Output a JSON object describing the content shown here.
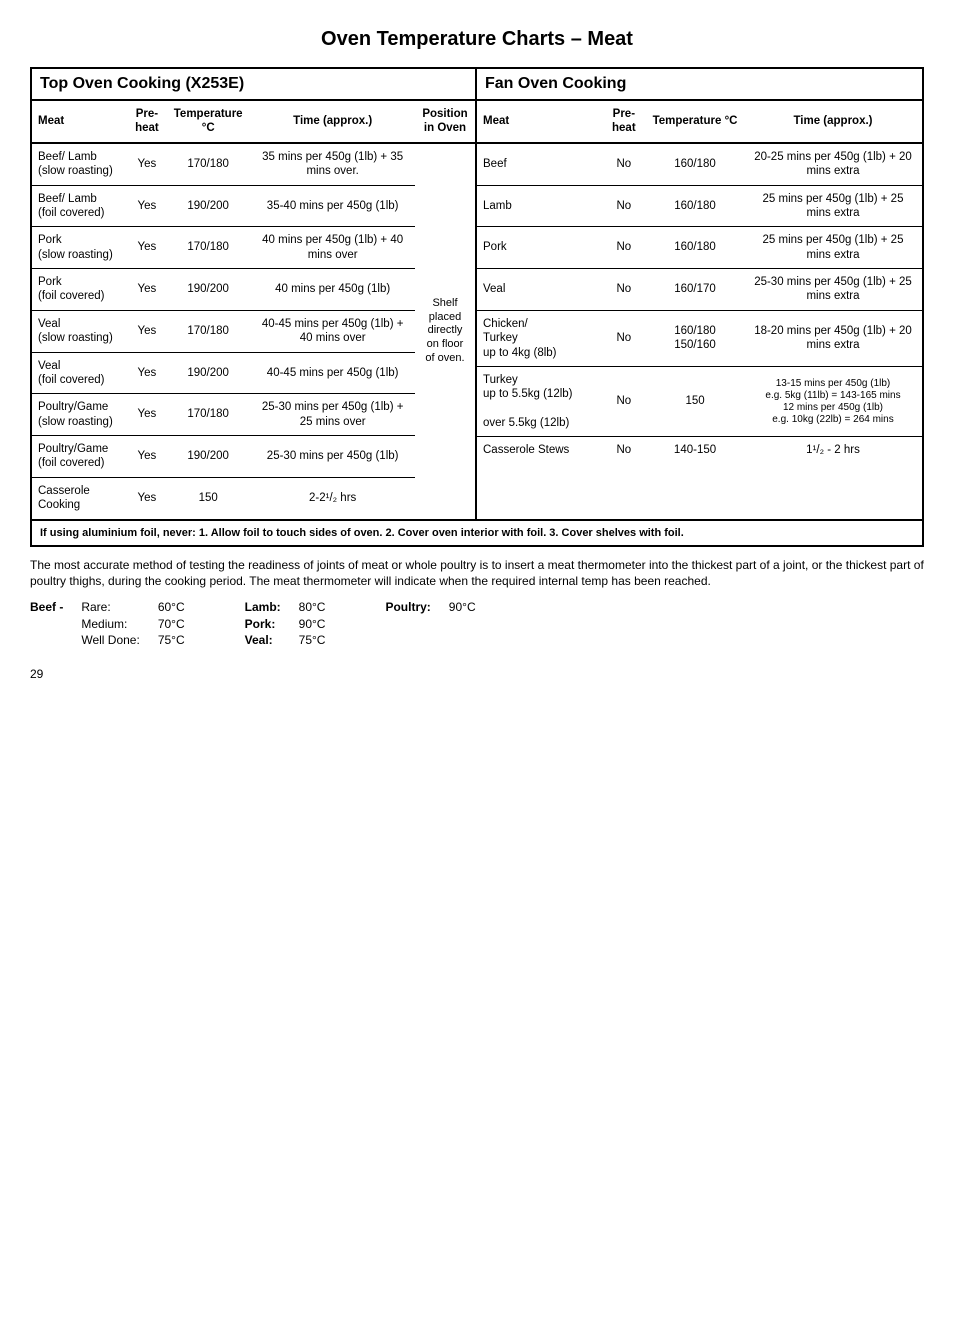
{
  "page_title": "Oven Temperature Charts – Meat",
  "left_header": "Top Oven Cooking (X253E)",
  "right_header": "Fan Oven Cooking",
  "columns": {
    "meat": "Meat",
    "preheat": "Pre-heat",
    "temp": "Temperature °C",
    "time": "Time (approx.)",
    "pos": "Position in Oven"
  },
  "left_rows": [
    {
      "meat": "Beef/ Lamb\n(slow roasting)",
      "pre": "Yes",
      "temp": "170/180",
      "time": "35 mins per 450g (1lb) + 35 mins over."
    },
    {
      "meat": "Beef/ Lamb\n(foil covered)",
      "pre": "Yes",
      "temp": "190/200",
      "time": "35-40 mins per 450g (1lb)"
    },
    {
      "meat": "Pork\n(slow roasting)",
      "pre": "Yes",
      "temp": "170/180",
      "time": "40 mins per 450g (1lb) + 40 mins over"
    },
    {
      "meat": "Pork\n(foil covered)",
      "pre": "Yes",
      "temp": "190/200",
      "time": "40 mins per 450g (1lb)"
    },
    {
      "meat": "Veal\n(slow roasting)",
      "pre": "Yes",
      "temp": "170/180",
      "time": "40-45 mins per 450g (1lb) + 40 mins over"
    },
    {
      "meat": "Veal\n(foil covered)",
      "pre": "Yes",
      "temp": "190/200",
      "time": "40-45 mins per 450g (1lb)"
    },
    {
      "meat": "Poultry/Game\n(slow roasting)",
      "pre": "Yes",
      "temp": "170/180",
      "time": "25-30 mins per 450g (1lb) + 25 mins over"
    },
    {
      "meat": "Poultry/Game\n(foil covered)",
      "pre": "Yes",
      "temp": "190/200",
      "time": "25-30 mins per 450g (1lb)"
    },
    {
      "meat": "Casserole Cooking",
      "pre": "Yes",
      "temp": "150",
      "time": "2-2¹/₂ hrs"
    }
  ],
  "pos_text": "Shelf placed directly on floor of oven.",
  "right_rows": [
    {
      "meat": "Beef",
      "pre": "No",
      "temp": "160/180",
      "time": "20-25 mins per 450g (1lb) + 20 mins extra"
    },
    {
      "meat": "Lamb",
      "pre": "No",
      "temp": "160/180",
      "time": "25 mins per 450g (1lb) + 25 mins extra"
    },
    {
      "meat": "Pork",
      "pre": "No",
      "temp": "160/180",
      "time": "25 mins per 450g (1lb) + 25 mins extra"
    },
    {
      "meat": "Veal",
      "pre": "No",
      "temp": "160/170",
      "time": "25-30 mins per 450g (1lb) + 25 mins extra"
    },
    {
      "meat": "Chicken/\nTurkey\nup to 4kg (8lb)",
      "pre": "No",
      "temp": "160/180\n150/160",
      "time": "18-20 mins per 450g (1lb) + 20 mins extra"
    },
    {
      "meat": "Turkey\nup to 5.5kg (12lb)\n\nover 5.5kg (12lb)",
      "pre": "No",
      "temp": "150",
      "time": "13-15 mins per 450g (1lb)\ne.g. 5kg (11lb) = 143-165 mins\n12 mins per 450g (1lb)\ne.g. 10kg (22lb) = 264 mins"
    },
    {
      "meat": "Casserole Stews",
      "pre": "No",
      "temp": "140-150",
      "time": "1¹/₂ - 2 hrs"
    }
  ],
  "footnote": "If using aluminium foil, never:  1. Allow foil to touch sides of oven.   2. Cover oven interior with foil.   3. Cover shelves with foil.",
  "below_para": "The most accurate method of testing the readiness of joints of meat or whole poultry is to insert a meat thermometer into the thickest part of a joint, or the thickest part of poultry thighs, during the cooking period. The meat thermometer will indicate when the required internal temp has been reached.",
  "temp_guide": {
    "beef_label": "Beef -",
    "beef_rows": [
      {
        "k": "Rare:",
        "v": "60°C"
      },
      {
        "k": "Medium:",
        "v": "70°C"
      },
      {
        "k": "Well Done:",
        "v": "75°C"
      }
    ],
    "other_rows": [
      {
        "k": "Lamb:",
        "v": "80°C"
      },
      {
        "k": "Pork:",
        "v": "90°C"
      },
      {
        "k": "Veal:",
        "v": "75°C"
      }
    ],
    "poultry": {
      "k": "Poultry:",
      "v": "90°C"
    }
  },
  "page_number": "29"
}
